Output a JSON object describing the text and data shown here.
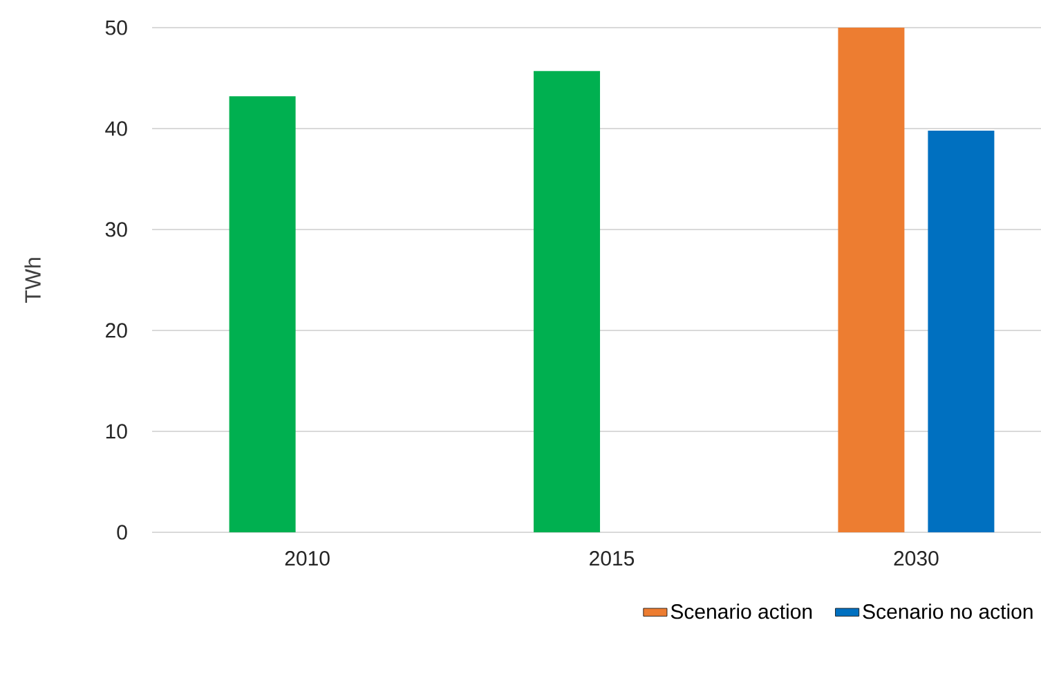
{
  "chart_data": {
    "type": "bar",
    "ylabel": "TWh",
    "categories": [
      "2010",
      "2015",
      "2030"
    ],
    "series": [
      {
        "name": "Scenario action",
        "color": "#ed7d31",
        "colors": [
          "#00b050",
          "#00b050",
          "#ed7d31"
        ],
        "values": [
          43.2,
          45.7,
          50
        ]
      },
      {
        "name": "Scenario no action",
        "color": "#0070c0",
        "values": [
          null,
          null,
          39.8
        ]
      }
    ],
    "ylim": [
      0,
      50
    ],
    "yticks": [
      0,
      10,
      20,
      30,
      40,
      50
    ],
    "grid": "y",
    "legend": "bottom right"
  }
}
